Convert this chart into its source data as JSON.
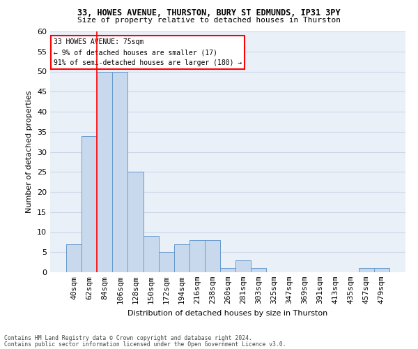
{
  "title1": "33, HOWES AVENUE, THURSTON, BURY ST EDMUNDS, IP31 3PY",
  "title2": "Size of property relative to detached houses in Thurston",
  "xlabel": "Distribution of detached houses by size in Thurston",
  "ylabel": "Number of detached properties",
  "bar_color": "#c9d9ed",
  "bar_edge_color": "#6699cc",
  "grid_color": "#d0d8e8",
  "background_color": "#eaf0f8",
  "categories": [
    "40sqm",
    "62sqm",
    "84sqm",
    "106sqm",
    "128sqm",
    "150sqm",
    "172sqm",
    "194sqm",
    "216sqm",
    "238sqm",
    "260sqm",
    "281sqm",
    "303sqm",
    "325sqm",
    "347sqm",
    "369sqm",
    "391sqm",
    "413sqm",
    "435sqm",
    "457sqm",
    "479sqm"
  ],
  "values": [
    7,
    34,
    50,
    50,
    25,
    9,
    5,
    7,
    8,
    8,
    1,
    3,
    1,
    0,
    0,
    0,
    0,
    0,
    0,
    1,
    1
  ],
  "ylim": [
    0,
    60
  ],
  "yticks": [
    0,
    5,
    10,
    15,
    20,
    25,
    30,
    35,
    40,
    45,
    50,
    55,
    60
  ],
  "property_line_x": 1.5,
  "annotation_line1": "33 HOWES AVENUE: 75sqm",
  "annotation_line2": "← 9% of detached houses are smaller (17)",
  "annotation_line3": "91% of semi-detached houses are larger (180) →",
  "annotation_box_color": "white",
  "annotation_box_edge": "red",
  "footer1": "Contains HM Land Registry data © Crown copyright and database right 2024.",
  "footer2": "Contains public sector information licensed under the Open Government Licence v3.0."
}
